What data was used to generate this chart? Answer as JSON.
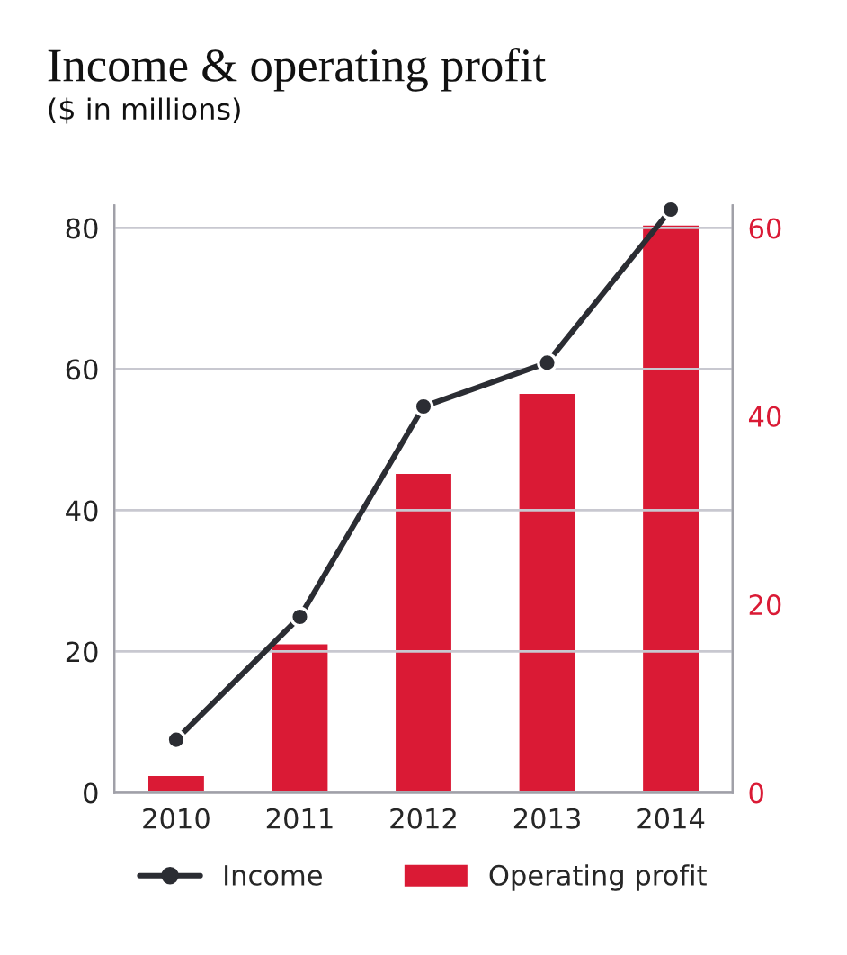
{
  "chart_data": {
    "type": "bar",
    "title": "Income & operating profit",
    "subtitle": "($ in millions)",
    "categories": [
      "2010",
      "2011",
      "2012",
      "2013",
      "2014"
    ],
    "series": [
      {
        "name": "Income",
        "type": "line",
        "color": "#2b2d33",
        "values": [
          7.5,
          24.9,
          54.7,
          60.9,
          82.6
        ],
        "marker": "circle"
      },
      {
        "name": "Operating profit",
        "axis": "y2",
        "color": "#da1a35",
        "values": [
          1.9,
          15.9,
          34.0,
          42.5,
          60.4
        ]
      }
    ],
    "ylim": [
      0,
      83.2
    ],
    "yticks": [
      0,
      20,
      40,
      60,
      80
    ],
    "y2lim": [
      0,
      62.4
    ],
    "y2ticks": [
      0,
      20,
      40,
      60
    ],
    "grid": "y",
    "legend": "bottom"
  }
}
